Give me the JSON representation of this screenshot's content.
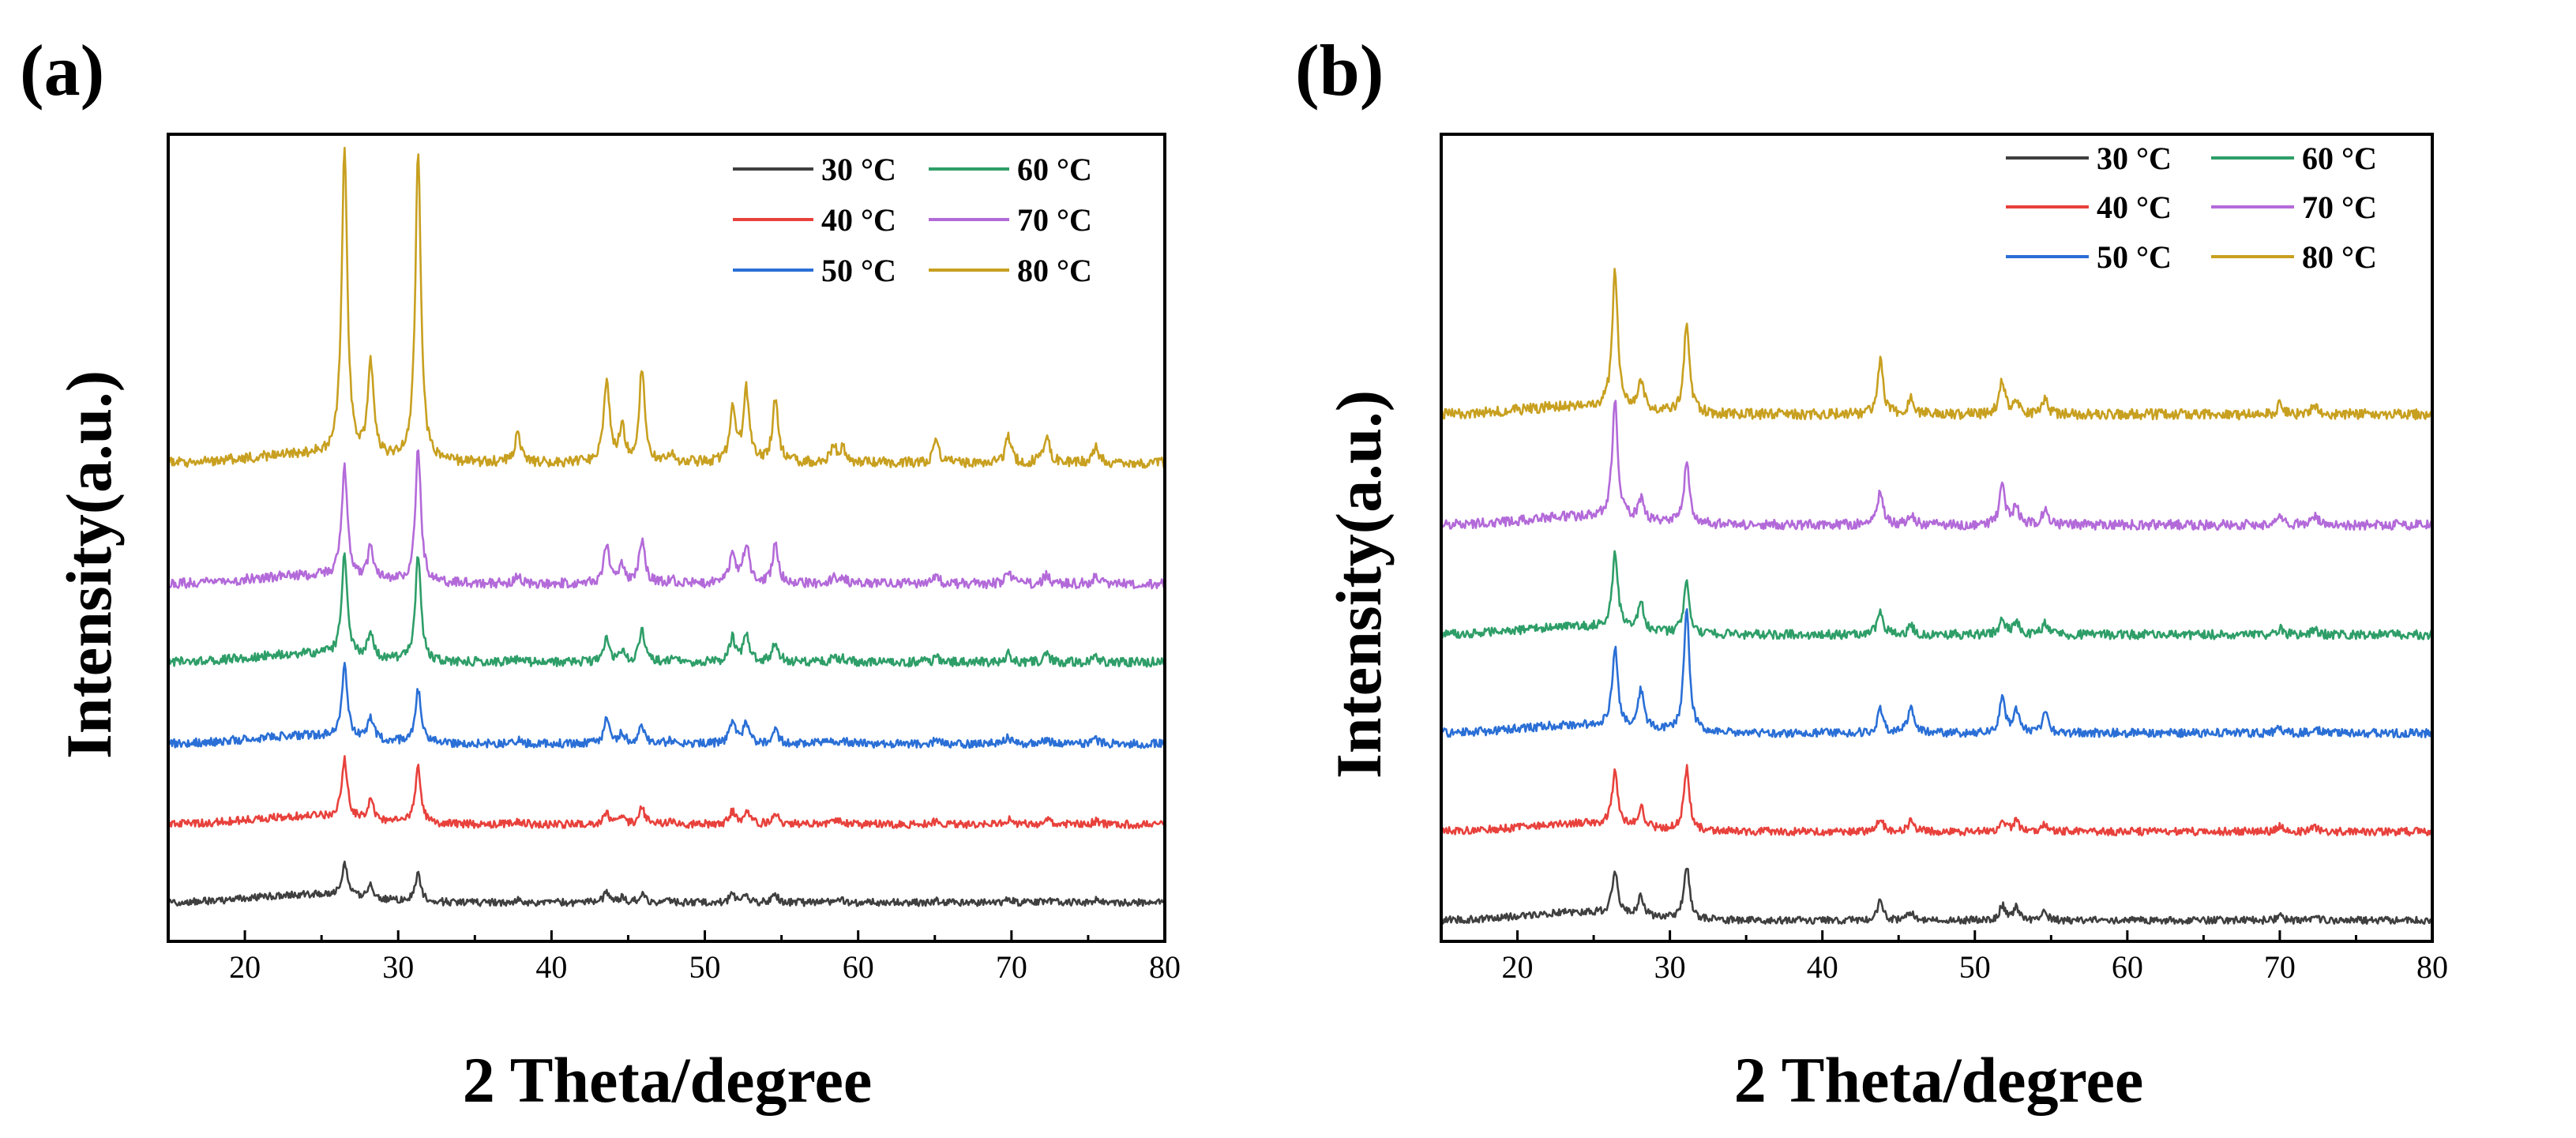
{
  "chart_data": [
    {
      "type": "line",
      "panel_label": "(a)",
      "xlabel": "2 Theta/degree",
      "ylabel": "Intensity(a.u.)",
      "xlim": [
        15,
        80
      ],
      "ylim": [
        0,
        1
      ],
      "xticks": [
        20,
        30,
        40,
        50,
        60,
        70,
        80
      ],
      "y_tick_labels": false,
      "legend_position": "top-right",
      "peaks_2theta": [
        26.5,
        28.2,
        31.3,
        37.8,
        43.6,
        44.6,
        45.9,
        47.8,
        51.8,
        52.7,
        54.6,
        58.4,
        59.0,
        65.1,
        69.8,
        72.3,
        75.5
      ],
      "series": [
        {
          "name": "30 °C",
          "color": "#3f3f3f",
          "baseline": 0.048,
          "peak_heights": [
            0.04,
            0.017,
            0.034,
            0.003,
            0.012,
            0.006,
            0.011,
            0.003,
            0.01,
            0.008,
            0.009,
            0.003,
            0.003,
            0.003,
            0.004,
            0.004,
            0.003
          ]
        },
        {
          "name": "40 °C",
          "color": "#e8413c",
          "baseline": 0.145,
          "peak_heights": [
            0.074,
            0.024,
            0.068,
            0.004,
            0.014,
            0.008,
            0.02,
            0.003,
            0.015,
            0.016,
            0.015,
            0.004,
            0.004,
            0.004,
            0.006,
            0.006,
            0.004
          ]
        },
        {
          "name": "50 °C",
          "color": "#2a6fd6",
          "baseline": 0.245,
          "peak_heights": [
            0.09,
            0.028,
            0.065,
            0.004,
            0.03,
            0.012,
            0.022,
            0.004,
            0.028,
            0.026,
            0.018,
            0.004,
            0.004,
            0.004,
            0.007,
            0.006,
            0.005
          ]
        },
        {
          "name": "60 °C",
          "color": "#2e9e68",
          "baseline": 0.346,
          "peak_heights": [
            0.125,
            0.03,
            0.13,
            0.004,
            0.032,
            0.012,
            0.038,
            0.004,
            0.03,
            0.035,
            0.026,
            0.005,
            0.005,
            0.005,
            0.01,
            0.009,
            0.006
          ]
        },
        {
          "name": "70 °C",
          "color": "#b36ad9",
          "baseline": 0.443,
          "peak_heights": [
            0.14,
            0.04,
            0.165,
            0.008,
            0.048,
            0.02,
            0.055,
            0.006,
            0.04,
            0.05,
            0.048,
            0.008,
            0.008,
            0.01,
            0.012,
            0.012,
            0.008
          ]
        },
        {
          "name": "80 °C",
          "color": "#c8a020",
          "baseline": 0.593,
          "peak_heights": [
            0.38,
            0.12,
            0.38,
            0.035,
            0.105,
            0.04,
            0.115,
            0.012,
            0.065,
            0.09,
            0.08,
            0.02,
            0.018,
            0.028,
            0.032,
            0.034,
            0.02
          ]
        }
      ],
      "legend": {
        "entries": [
          "30 °C",
          "60 °C",
          "40 °C",
          "70 °C",
          "50 °C",
          "80 °C"
        ]
      }
    },
    {
      "type": "line",
      "panel_label": "(b)",
      "xlabel": "2 Theta/degree",
      "ylabel": "Intensity(a.u.)",
      "xlim": [
        15,
        80
      ],
      "ylim": [
        0,
        1
      ],
      "xticks": [
        20,
        30,
        40,
        50,
        60,
        70,
        80
      ],
      "y_tick_labels": false,
      "legend_position": "top-right",
      "peaks_2theta": [
        26.4,
        28.1,
        31.1,
        43.8,
        45.8,
        51.8,
        52.7,
        54.6,
        70.0,
        72.3
      ],
      "series": [
        {
          "name": "30 °C",
          "color": "#3f3f3f",
          "baseline": 0.026,
          "peak_heights": [
            0.055,
            0.025,
            0.067,
            0.025,
            0.01,
            0.018,
            0.016,
            0.01,
            0.005,
            0.004
          ]
        },
        {
          "name": "40 °C",
          "color": "#e8413c",
          "baseline": 0.136,
          "peak_heights": [
            0.067,
            0.025,
            0.077,
            0.016,
            0.013,
            0.013,
            0.014,
            0.01,
            0.006,
            0.005
          ]
        },
        {
          "name": "50 °C",
          "color": "#2a6fd6",
          "baseline": 0.258,
          "peak_heights": [
            0.097,
            0.047,
            0.149,
            0.029,
            0.033,
            0.041,
            0.03,
            0.025,
            0.007,
            0.008
          ]
        },
        {
          "name": "60 °C",
          "color": "#2e9e68",
          "baseline": 0.38,
          "peak_heights": [
            0.093,
            0.035,
            0.063,
            0.03,
            0.011,
            0.02,
            0.017,
            0.013,
            0.007,
            0.006
          ]
        },
        {
          "name": "70 °C",
          "color": "#b36ad9",
          "baseline": 0.516,
          "peak_heights": [
            0.147,
            0.027,
            0.074,
            0.043,
            0.015,
            0.048,
            0.023,
            0.018,
            0.011,
            0.012
          ]
        },
        {
          "name": "80 °C",
          "color": "#c8a020",
          "baseline": 0.653,
          "peak_heights": [
            0.17,
            0.035,
            0.11,
            0.065,
            0.02,
            0.042,
            0.02,
            0.018,
            0.012,
            0.012
          ]
        }
      ],
      "legend": {
        "entries": [
          "30 °C",
          "60 °C",
          "40 °C",
          "70 °C",
          "50 °C",
          "80 °C"
        ]
      }
    }
  ]
}
